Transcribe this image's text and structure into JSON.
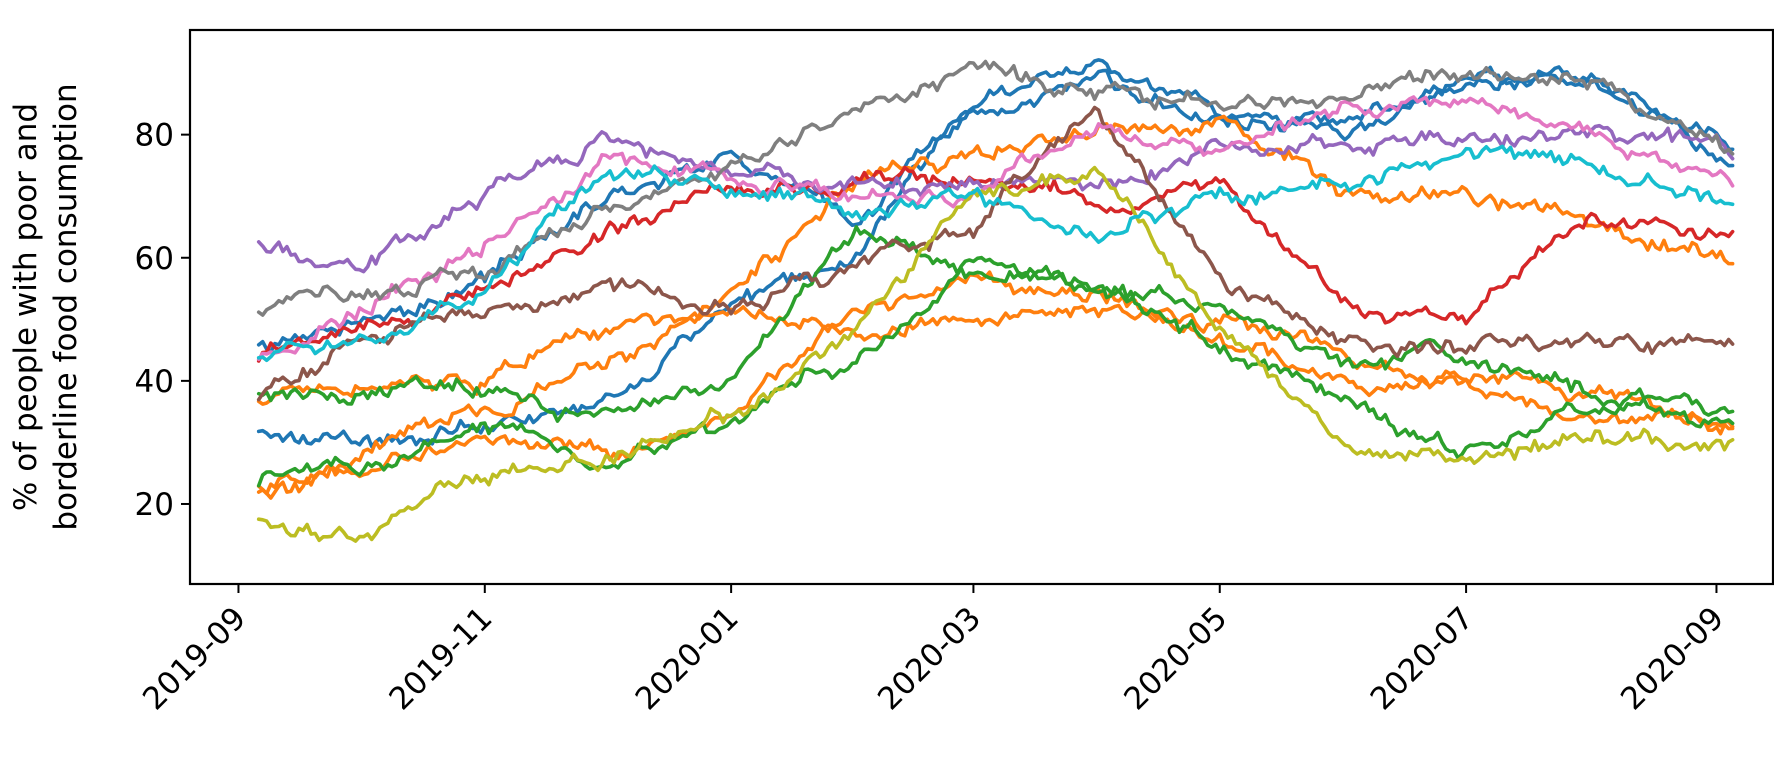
{
  "chart_data": {
    "type": "line",
    "title": "",
    "xlabel": "",
    "ylabel": [
      "% of people with poor and",
      "borderline food consumption"
    ],
    "x_ticks": [
      "2019-09",
      "2019-11",
      "2020-01",
      "2020-03",
      "2020-05",
      "2020-07",
      "2020-09"
    ],
    "y_ticks": [
      20,
      40,
      60,
      80
    ],
    "xlim": [
      "2019-08-20",
      "2020-09-15"
    ],
    "ylim": [
      7,
      97
    ],
    "grid": false,
    "legend": "none",
    "dates": [
      "2019-09-06",
      "2019-10-01",
      "2019-11-01",
      "2019-12-01",
      "2020-01-01",
      "2020-02-01",
      "2020-03-01",
      "2020-04-01",
      "2020-05-01",
      "2020-06-01",
      "2020-07-01",
      "2020-08-01",
      "2020-09-05"
    ],
    "series": [
      {
        "color": "#1f77b4",
        "values": [
          45,
          50,
          56,
          70,
          77,
          66,
          85,
          91,
          84,
          79,
          88,
          89,
          77
        ]
      },
      {
        "color": "#1f77b4",
        "values": [
          31,
          29,
          33,
          36,
          52,
          60,
          84,
          89,
          82,
          83,
          89,
          88,
          75
        ]
      },
      {
        "color": "#ff7f0e",
        "values": [
          37,
          39,
          40,
          48,
          54,
          73,
          77,
          81,
          83,
          71,
          71,
          66,
          59
        ]
      },
      {
        "color": "#ff7f0e",
        "values": [
          23,
          27,
          35,
          43,
          52,
          48,
          50,
          51,
          47,
          39,
          39,
          35,
          33
        ]
      },
      {
        "color": "#ff7f0e",
        "values": [
          22,
          26,
          30,
          28,
          34,
          52,
          56,
          55,
          50,
          44,
          39,
          38,
          33
        ]
      },
      {
        "color": "#2ca02c",
        "values": [
          37,
          38,
          39,
          33,
          40,
          65,
          60,
          55,
          52,
          43,
          44,
          38,
          35
        ]
      },
      {
        "color": "#2ca02c",
        "values": [
          23,
          26,
          33,
          27,
          35,
          45,
          57,
          55,
          46,
          36,
          28,
          37,
          33
        ]
      },
      {
        "color": "#d62728",
        "values": [
          44,
          48,
          55,
          65,
          71,
          73,
          73,
          69,
          72,
          52,
          50,
          67,
          63
        ]
      },
      {
        "color": "#9467bd",
        "values": [
          62,
          58,
          70,
          80,
          74,
          72,
          72,
          72,
          77,
          79,
          79,
          81,
          77
        ]
      },
      {
        "color": "#8c564b",
        "values": [
          38,
          46,
          52,
          55,
          52,
          59,
          66,
          84,
          56,
          46,
          45,
          46,
          47
        ]
      },
      {
        "color": "#e377c2",
        "values": [
          44,
          50,
          62,
          76,
          73,
          70,
          70,
          81,
          77,
          84,
          86,
          81,
          73
        ]
      },
      {
        "color": "#7f7f7f",
        "values": [
          52,
          55,
          58,
          68,
          74,
          85,
          90,
          88,
          85,
          86,
          89,
          89,
          78
        ]
      },
      {
        "color": "#bcbd22",
        "values": [
          17,
          15,
          25,
          28,
          34,
          48,
          70,
          75,
          50,
          29,
          27,
          31,
          30
        ]
      },
      {
        "color": "#17becf",
        "values": [
          45,
          46,
          55,
          75,
          71,
          69,
          70,
          63,
          70,
          72,
          76,
          75,
          70
        ]
      }
    ]
  }
}
